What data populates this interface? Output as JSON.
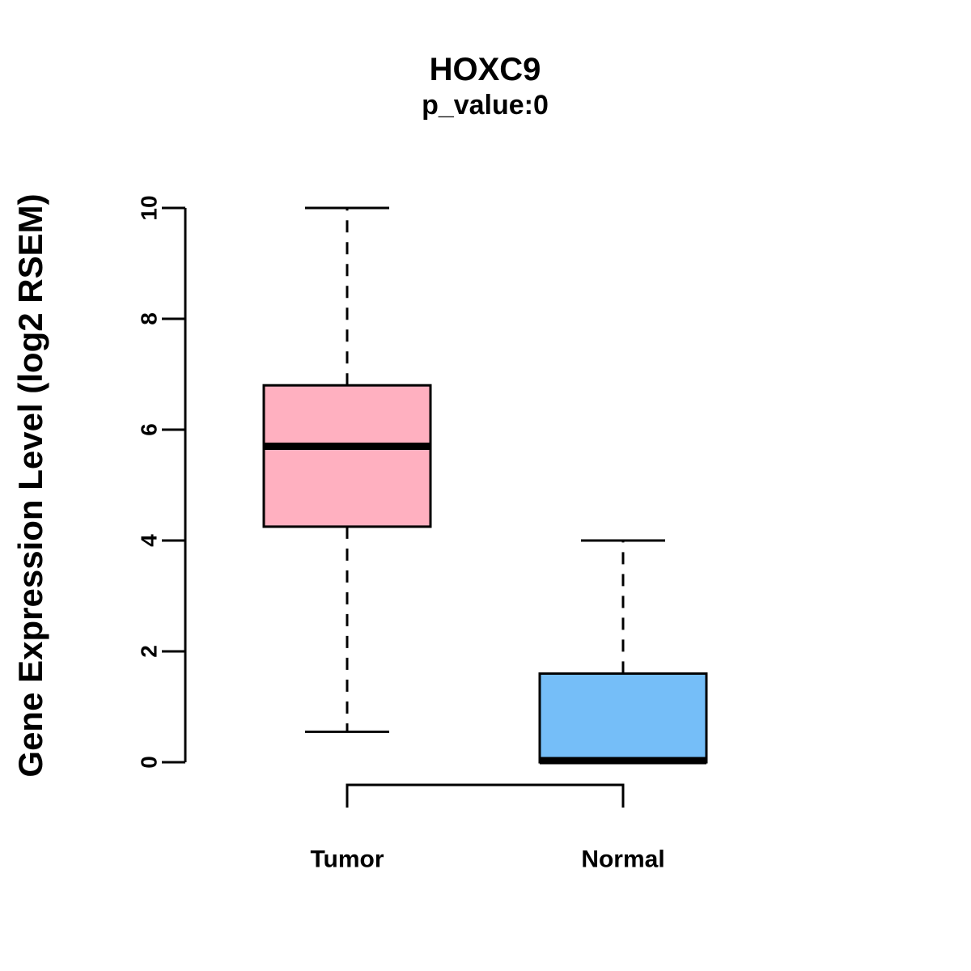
{
  "chart_data": {
    "type": "boxplot",
    "title": "HOXC9",
    "subtitle": "p_value:0",
    "ylabel": "Gene Expression Level (log2 RSEM)",
    "xlabel": "",
    "ylim": [
      0,
      10
    ],
    "yticks": [
      0,
      2,
      4,
      6,
      8,
      10
    ],
    "grid": false,
    "legend": "none",
    "whisker_style": "dashed",
    "groups": [
      {
        "label": "Tumor",
        "color": "#FFB0C0",
        "stats": {
          "min": 0.55,
          "q1": 4.25,
          "median": 5.7,
          "q3": 6.8,
          "max": 10
        }
      },
      {
        "label": "Normal",
        "color": "#75BEF8",
        "stats": {
          "min": 0,
          "q1": 0,
          "median": 0.03,
          "q3": 1.6,
          "max": 4
        }
      }
    ],
    "colors": {
      "stroke": "#000000",
      "background": "#ffffff"
    }
  }
}
